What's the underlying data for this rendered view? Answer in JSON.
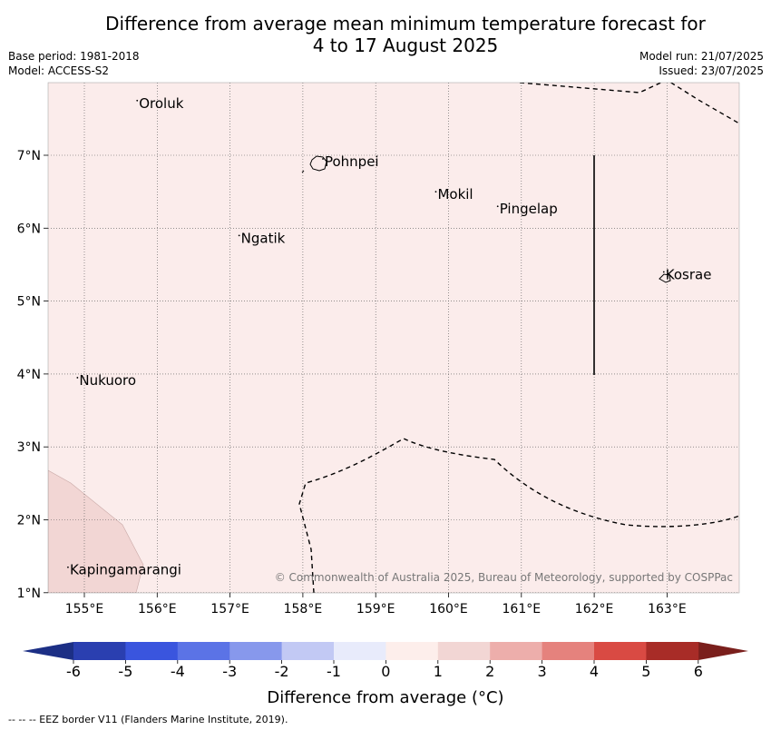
{
  "title": {
    "line1": "Difference from average mean minimum temperature forecast for",
    "line2": "4 to 17 August 2025"
  },
  "meta": {
    "base_period": "Base period: 1981-2018",
    "model": "Model: ACCESS-S2",
    "model_run": "Model run: 21/07/2025",
    "issued": "Issued: 23/07/2025"
  },
  "map": {
    "longitude_ticks": [
      "155°E",
      "156°E",
      "157°E",
      "158°E",
      "159°E",
      "160°E",
      "161°E",
      "162°E",
      "163°E"
    ],
    "latitude_ticks": [
      "7°N",
      "6°N",
      "5°N",
      "4°N",
      "3°N",
      "2°N",
      "1°N"
    ],
    "background_color": "#fbeceb",
    "warm_region_color": "#f2d6d4",
    "places": [
      {
        "name": "Oroluk",
        "lon": 155.75,
        "lat": 7.65
      },
      {
        "name": "Pohnpei",
        "lon": 158.3,
        "lat": 6.85
      },
      {
        "name": "Mokil",
        "lon": 159.85,
        "lat": 6.4
      },
      {
        "name": "Pingelap",
        "lon": 160.7,
        "lat": 6.2
      },
      {
        "name": "Ngatik",
        "lon": 157.15,
        "lat": 5.8
      },
      {
        "name": "Kosrae",
        "lon": 162.98,
        "lat": 5.3
      },
      {
        "name": "Nukuoro",
        "lon": 154.93,
        "lat": 3.85
      },
      {
        "name": "Kapingamarangi",
        "lon": 154.8,
        "lat": 1.25
      }
    ],
    "copyright": "© Commonwealth of Australia 2025, Bureau of Meteorology, supported by COSPPac"
  },
  "colorbar": {
    "ticks": [
      "-6",
      "-5",
      "-4",
      "-3",
      "-2",
      "-1",
      "0",
      "1",
      "2",
      "3",
      "4",
      "5",
      "6"
    ],
    "colors": [
      "#2a3fb0",
      "#3a55de",
      "#5b73e6",
      "#8798ec",
      "#c2c9f4",
      "#e8ebfb",
      "#fdeeeb",
      "#f2d6d4",
      "#edaeab",
      "#e5827d",
      "#d94a43",
      "#a82c27"
    ],
    "below_color": "#1c2f85",
    "above_color": "#7a1f1c",
    "title": "Difference from average (°C)"
  },
  "footnote": "--  --  -- EEZ border V11 (Flanders Marine Institute, 2019)."
}
